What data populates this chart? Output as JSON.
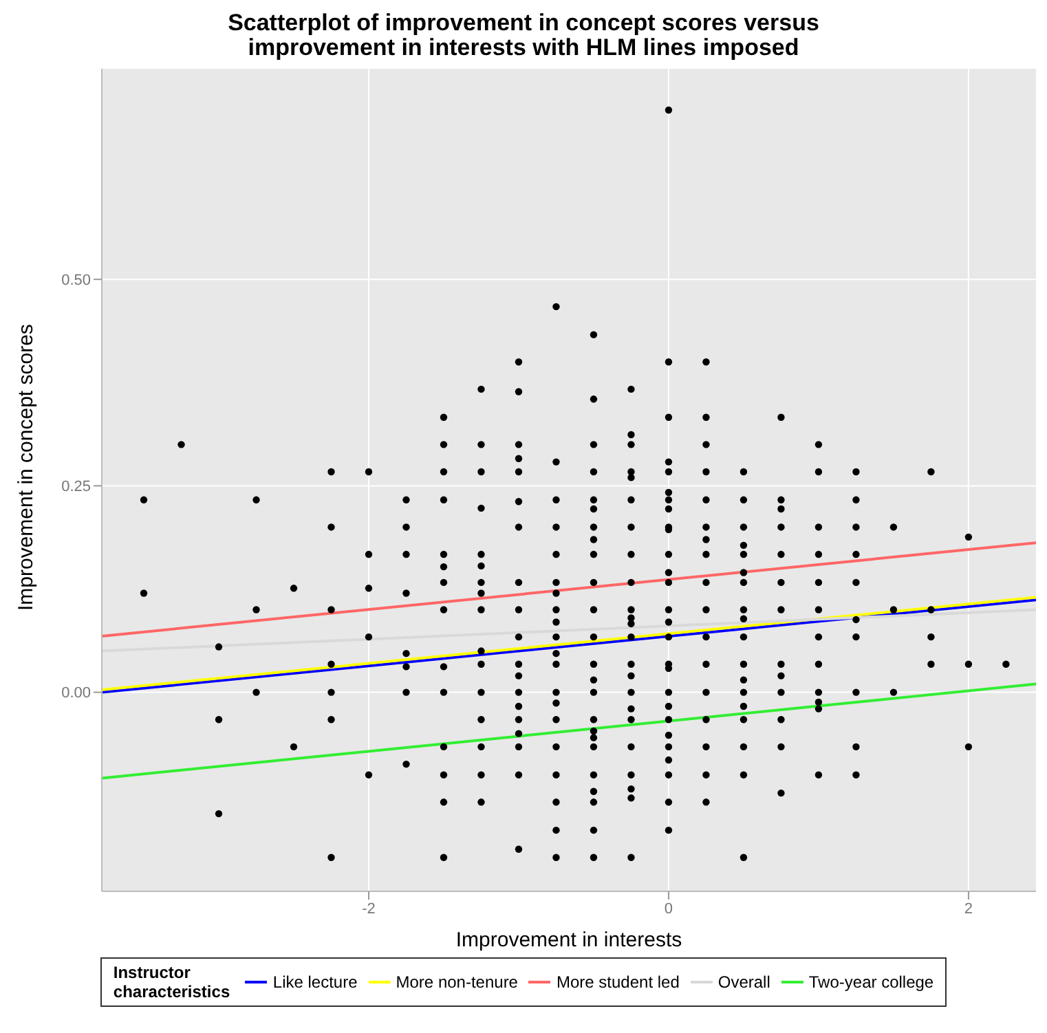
{
  "chart_data": {
    "type": "scatter",
    "title": "Scatterplot of improvement in concept scores versus improvement in interests with HLM lines imposed",
    "xlabel": "Improvement in interests",
    "ylabel": "Improvement in concept scores",
    "legend_title": "Instructor characteristics",
    "legend": "bottom",
    "grid": true,
    "xlim": [
      -3.78,
      2.45
    ],
    "ylim": [
      -0.241,
      0.755
    ],
    "xticks": [
      -2,
      0,
      2
    ],
    "yticks": [
      {
        "value": 0,
        "label": "0.00"
      },
      {
        "value": 0.25,
        "label": "0.25"
      },
      {
        "value": 0.5,
        "label": "0.50"
      }
    ],
    "series": [
      {
        "marker": "circle",
        "color": "#000000",
        "x": [
          -3.5,
          -3.5,
          -3.25,
          -3,
          -3,
          -3,
          -2.75,
          -2.75,
          -2.75,
          -2.5,
          -2.5,
          -2.25,
          -2.25,
          -2.25,
          -2.25,
          -2.25,
          -2.25,
          -2.25,
          -2,
          -2,
          -2,
          -2,
          -2,
          -1.75,
          -1.75,
          -1.75,
          -1.75,
          -1.75,
          -1.75,
          -1.75,
          -1.75,
          -1.5,
          -1.5,
          -1.5,
          -1.5,
          -1.5,
          -1.5,
          -1.5,
          -1.5,
          -1.5,
          -1.5,
          -1.5,
          -1.5,
          -1.5,
          -1.5,
          -1.25,
          -1.25,
          -1.25,
          -1.25,
          -1.25,
          -1.25,
          -1.25,
          -1.25,
          -1.25,
          -1.25,
          -1.25,
          -1.25,
          -1.25,
          -1.25,
          -1.25,
          -1.25,
          -1,
          -1,
          -1,
          -1,
          -1,
          -1,
          -1,
          -1,
          -1,
          -1,
          -1,
          -1,
          -1,
          -1,
          -1,
          -1,
          -1,
          -1,
          -1,
          -0.75,
          -0.75,
          -0.75,
          -0.75,
          -0.75,
          -0.75,
          -0.75,
          -0.75,
          -0.75,
          -0.75,
          -0.75,
          -0.75,
          -0.75,
          -0.75,
          -0.75,
          -0.75,
          -0.75,
          -0.75,
          -0.75,
          -0.75,
          -0.5,
          -0.5,
          -0.5,
          -0.5,
          -0.5,
          -0.5,
          -0.5,
          -0.5,
          -0.5,
          -0.5,
          -0.5,
          -0.5,
          -0.5,
          -0.5,
          -0.5,
          -0.5,
          -0.5,
          -0.5,
          -0.5,
          -0.5,
          -0.5,
          -0.5,
          -0.5,
          -0.5,
          -0.25,
          -0.25,
          -0.25,
          -0.25,
          -0.25,
          -0.25,
          -0.25,
          -0.25,
          -0.25,
          -0.25,
          -0.25,
          -0.25,
          -0.25,
          -0.25,
          -0.25,
          -0.25,
          -0.25,
          -0.25,
          -0.25,
          -0.25,
          -0.25,
          -0.25,
          -0.25,
          0,
          0,
          0,
          0,
          0,
          0,
          0,
          0,
          0,
          0,
          0,
          0,
          0,
          0,
          0,
          0,
          0,
          0,
          0,
          0,
          0,
          0,
          0,
          0,
          0,
          0,
          0,
          0.25,
          0.25,
          0.25,
          0.25,
          0.25,
          0.25,
          0.25,
          0.25,
          0.25,
          0.25,
          0.25,
          0.25,
          0.25,
          0.25,
          0.25,
          0.25,
          0.25,
          0.5,
          0.5,
          0.5,
          0.5,
          0.5,
          0.5,
          0.5,
          0.5,
          0.5,
          0.5,
          0.5,
          0.5,
          0.5,
          0.5,
          0.5,
          0.5,
          0.5,
          0.5,
          0.75,
          0.75,
          0.75,
          0.75,
          0.75,
          0.75,
          0.75,
          0.75,
          0.75,
          0.75,
          0.75,
          0.75,
          0.75,
          1,
          1,
          1,
          1,
          1,
          1,
          1,
          1,
          1,
          1,
          1,
          1,
          1.25,
          1.25,
          1.25,
          1.25,
          1.25,
          1.25,
          1.25,
          1.25,
          1.25,
          1.25,
          1.5,
          1.5,
          1.5,
          1.75,
          1.75,
          1.75,
          1.75,
          2,
          2,
          2,
          2.25
        ],
        "values": [
          0.233,
          0.12,
          0.3,
          0.055,
          -0.033,
          -0.147,
          0.233,
          0.1,
          0,
          0.126,
          -0.066,
          0.267,
          0.2,
          0.1,
          0.034,
          0,
          -0.033,
          -0.2,
          0.267,
          0.167,
          0.126,
          0.067,
          -0.1,
          0.233,
          0.2,
          0.167,
          0.12,
          0.047,
          0.031,
          0,
          -0.087,
          0.333,
          0.3,
          0.267,
          0.233,
          0.167,
          0.152,
          0.133,
          0.1,
          0.031,
          0,
          -0.066,
          -0.1,
          -0.133,
          -0.2,
          0.367,
          0.3,
          0.267,
          0.223,
          0.167,
          0.153,
          0.133,
          0.12,
          0.1,
          0.05,
          0.034,
          0,
          -0.033,
          -0.066,
          -0.1,
          -0.133,
          0.4,
          0.364,
          0.3,
          0.283,
          0.267,
          0.231,
          0.2,
          0.133,
          0.1,
          0.067,
          0.034,
          0.02,
          0,
          -0.017,
          -0.033,
          -0.05,
          -0.066,
          -0.1,
          -0.19,
          0.467,
          0.279,
          0.233,
          0.2,
          0.167,
          0.133,
          0.12,
          0.1,
          0.085,
          0.067,
          0.047,
          0.034,
          0,
          -0.013,
          -0.033,
          -0.066,
          -0.1,
          -0.133,
          -0.167,
          -0.2,
          0.433,
          0.355,
          0.3,
          0.267,
          0.233,
          0.222,
          0.2,
          0.185,
          0.167,
          0.133,
          0.1,
          0.067,
          0.034,
          0.015,
          0,
          -0.033,
          -0.047,
          -0.055,
          -0.066,
          -0.1,
          -0.12,
          -0.133,
          -0.167,
          -0.2,
          0.367,
          0.312,
          0.3,
          0.267,
          0.26,
          0.233,
          0.2,
          0.167,
          0.133,
          0.1,
          0.09,
          0.083,
          0.067,
          0.034,
          0.02,
          0,
          -0.02,
          -0.033,
          -0.066,
          -0.1,
          -0.117,
          -0.128,
          -0.2,
          0.705,
          0.4,
          0.333,
          0.279,
          0.267,
          0.242,
          0.233,
          0.222,
          0.2,
          0.197,
          0.167,
          0.145,
          0.133,
          0.1,
          0.085,
          0.067,
          0.034,
          0.029,
          0,
          -0.017,
          -0.033,
          -0.052,
          -0.066,
          -0.082,
          -0.1,
          -0.133,
          -0.167,
          0.4,
          0.333,
          0.3,
          0.267,
          0.233,
          0.2,
          0.185,
          0.167,
          0.133,
          0.1,
          0.067,
          0.034,
          0,
          -0.033,
          -0.066,
          -0.1,
          -0.133,
          0.267,
          0.233,
          0.2,
          0.178,
          0.167,
          0.145,
          0.133,
          0.1,
          0.089,
          0.067,
          0.034,
          0.015,
          0,
          -0.017,
          -0.033,
          -0.066,
          -0.1,
          -0.2,
          0.333,
          0.233,
          0.222,
          0.2,
          0.167,
          0.133,
          0.1,
          0.034,
          0.02,
          0,
          -0.033,
          -0.066,
          -0.122,
          0.3,
          0.267,
          0.2,
          0.167,
          0.133,
          0.1,
          0.067,
          0.034,
          0,
          -0.012,
          -0.02,
          -0.1,
          0.267,
          0.233,
          0.2,
          0.167,
          0.133,
          0.088,
          0.067,
          0,
          -0.066,
          -0.1,
          0.2,
          0.1,
          0,
          0.267,
          0.1,
          0.067,
          0.034,
          0.188,
          0.034,
          -0.066,
          0.034
        ]
      },
      {
        "type": "line",
        "marker": "none",
        "name": "Like lecture",
        "color": "#0000ff",
        "x": [
          -3.78,
          2.45
        ],
        "values": [
          0.0,
          0.112
        ]
      },
      {
        "type": "line",
        "marker": "none",
        "name": "More non-tenure",
        "color": "#ffff00",
        "x": [
          -3.78,
          2.45
        ],
        "values": [
          0.003,
          0.115
        ]
      },
      {
        "type": "line",
        "marker": "none",
        "name": "More student led",
        "color": "#ff6666",
        "x": [
          -3.78,
          2.45
        ],
        "values": [
          0.068,
          0.181
        ]
      },
      {
        "type": "line",
        "marker": "none",
        "name": "Overall",
        "color": "#d9d9d9",
        "x": [
          -3.78,
          2.45
        ],
        "values": [
          0.05,
          0.1
        ]
      },
      {
        "type": "line",
        "marker": "none",
        "name": "Two-year college",
        "color": "#33ee33",
        "x": [
          -3.78,
          2.45
        ],
        "values": [
          -0.104,
          0.01
        ]
      }
    ]
  }
}
